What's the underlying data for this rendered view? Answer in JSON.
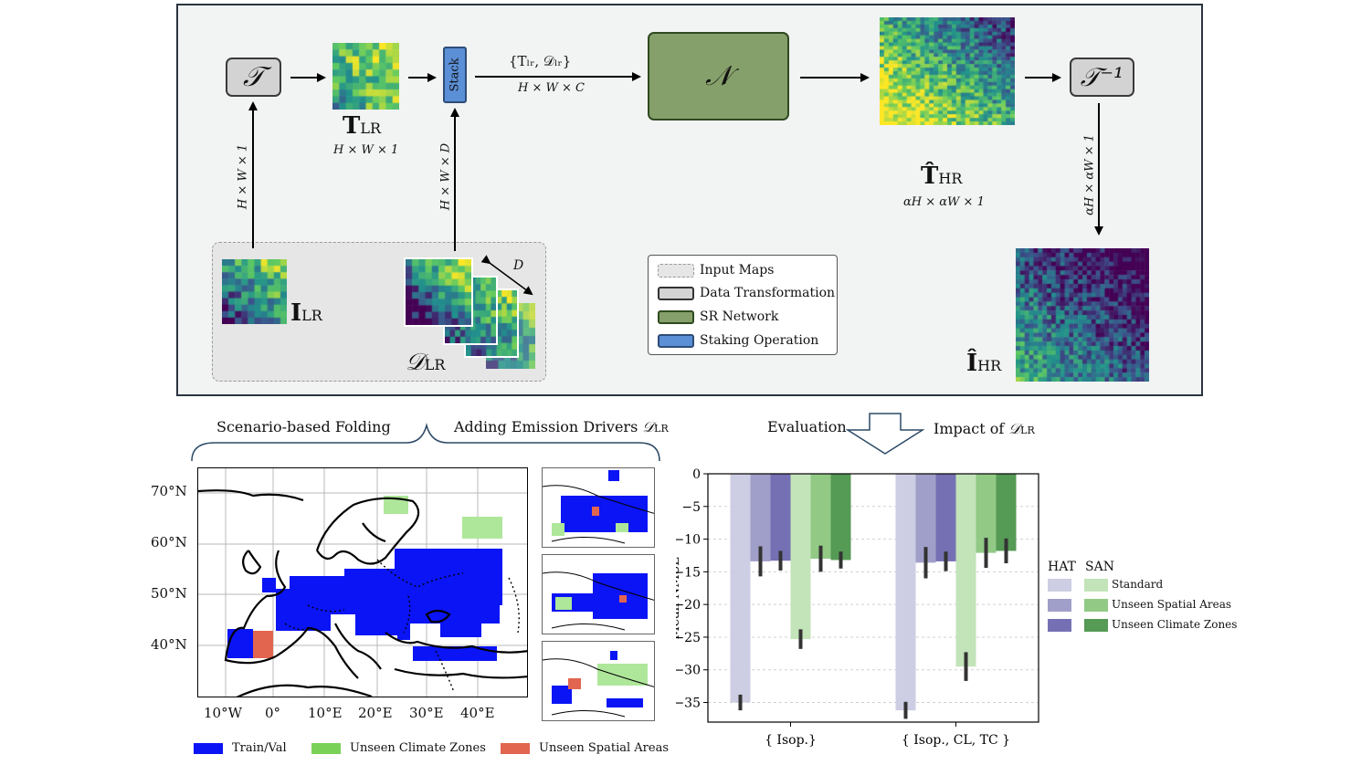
{
  "top": {
    "transform_symbol": "𝒯",
    "inverse_transform_symbol": "𝒯⁻¹",
    "network_symbol": "𝒩",
    "stack_label": "Stack",
    "t_lr": {
      "main": "T",
      "sub": "LR",
      "dims": "H × W × 1"
    },
    "concat": {
      "label": "{Tₗᵣ, 𝒟ₗᵣ}",
      "dims": "H × W × C"
    },
    "t_hr": {
      "main": "T̂",
      "sub": "HR",
      "dims": "αH × αW × 1"
    },
    "i_lr": {
      "main": "I",
      "sub": "LR"
    },
    "d_lr": {
      "main": "𝒟",
      "sub": "LR"
    },
    "i_hr": {
      "main": "Î",
      "sub": "HR"
    },
    "depth_label": "D",
    "vdim_left": "H × W × 1",
    "vdim_mid": "H × W × D",
    "vdim_right": "αH × αW × 1",
    "legend": [
      {
        "label": "Input Maps",
        "color": "#e6e6e6"
      },
      {
        "label": "Data Transformation",
        "color": "#d3d3d3"
      },
      {
        "label": "SR Network",
        "color": "#86a06b"
      },
      {
        "label": "Staking Operation",
        "color": "#5b8fd6"
      }
    ]
  },
  "bottom_left": {
    "section_left": "Scenario-based Folding",
    "section_right_text": "Adding Emission Drivers ",
    "section_right_symbol": "𝒟",
    "section_right_sub": "LR",
    "lat_ticks": [
      "70°N",
      "60°N",
      "50°N",
      "40°N"
    ],
    "lon_ticks": [
      "10°W",
      "0°",
      "10°E",
      "20°E",
      "30°E",
      "40°E"
    ],
    "map_legend": [
      {
        "label": "Train/Val",
        "color": "#0a14f5"
      },
      {
        "label": "Unseen Climate Zones",
        "color": "#7ad158"
      },
      {
        "label": "Unseen Spatial Areas",
        "color": "#e2654f"
      }
    ]
  },
  "bottom_right": {
    "section_left": "Evaluation",
    "section_right_text": "Impact of ",
    "section_right_symbol": "𝒟",
    "section_right_sub": "LR",
    "legend_heads": [
      "HAT",
      "SAN"
    ],
    "legend_items": [
      "Standard",
      "Unseen Spatial Areas",
      "Unseen Climate Zones"
    ]
  },
  "chart_data": {
    "type": "bar",
    "ylabel": "Mean NMSE",
    "ylim": [
      -38,
      0
    ],
    "yticks": [
      0,
      -5,
      -10,
      -15,
      -20,
      -25,
      -30,
      -35
    ],
    "ytick_labels": [
      "0",
      "−5",
      "−10",
      "−15",
      "−20",
      "−25",
      "−30",
      "−35"
    ],
    "categories": [
      "{ Isop.}",
      "{ Isop., CL, TC }"
    ],
    "series": [
      {
        "name": "HAT Standard",
        "color": "#cdcde3",
        "values": [
          -35.0,
          -36.2
        ],
        "err": [
          1.2,
          1.3
        ]
      },
      {
        "name": "HAT Unseen Spatial Areas",
        "color": "#a09fc9",
        "values": [
          -13.4,
          -13.6
        ],
        "err": [
          2.3,
          2.4
        ]
      },
      {
        "name": "HAT Unseen Climate Zones",
        "color": "#7570b3",
        "values": [
          -13.3,
          -13.4
        ],
        "err": [
          1.5,
          1.5
        ]
      },
      {
        "name": "SAN Standard",
        "color": "#c3e3b9",
        "values": [
          -25.3,
          -29.5
        ],
        "err": [
          1.5,
          2.2
        ]
      },
      {
        "name": "SAN Unseen Spatial Areas",
        "color": "#91c985",
        "values": [
          -13.0,
          -12.1
        ],
        "err": [
          2.0,
          2.3
        ]
      },
      {
        "name": "SAN Unseen Climate Zones",
        "color": "#559a55",
        "values": [
          -13.2,
          -11.8
        ],
        "err": [
          1.3,
          1.9
        ]
      }
    ],
    "grid": "y",
    "legend_position": "right"
  }
}
